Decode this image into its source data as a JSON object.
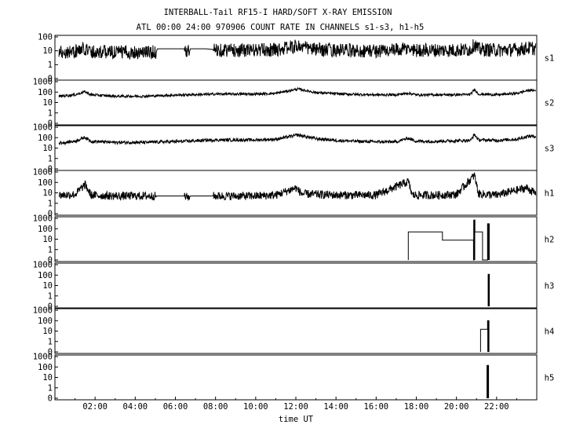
{
  "chart_data": {
    "type": "line",
    "title": "INTERBALL-Tail RF15-I HARD/SOFT X-RAY EMISSION",
    "subtitle": "ATL 00:00 24:00 970906  COUNT RATE IN CHANNELS s1-s3, h1-h5",
    "xlabel": "time UT",
    "x_unit": "hours UT",
    "xlim": [
      0,
      24
    ],
    "x_ticks": [
      {
        "value": 2,
        "label": "02:00"
      },
      {
        "value": 4,
        "label": "04:00"
      },
      {
        "value": 6,
        "label": "06:00"
      },
      {
        "value": 8,
        "label": "08:00"
      },
      {
        "value": 10,
        "label": "10:00"
      },
      {
        "value": 12,
        "label": "12:00"
      },
      {
        "value": 14,
        "label": "14:00"
      },
      {
        "value": 16,
        "label": "16:00"
      },
      {
        "value": 18,
        "label": "18:00"
      },
      {
        "value": 20,
        "label": "20:00"
      },
      {
        "value": 22,
        "label": "22:00"
      }
    ],
    "y_scale": "log",
    "grid": false,
    "panels": [
      {
        "name": "s1",
        "ylim": [
          0,
          100
        ],
        "y_ticks": [
          {
            "value": 100,
            "label": "100"
          },
          {
            "value": 10,
            "label": "10"
          },
          {
            "value": 1,
            "label": "1"
          },
          {
            "value": 0,
            "label": "0"
          }
        ],
        "noise": 0.5,
        "points": [
          [
            0.2,
            8
          ],
          [
            1.0,
            9
          ],
          [
            1.5,
            15
          ],
          [
            1.8,
            9
          ],
          [
            3.0,
            8
          ],
          [
            4.5,
            8
          ],
          [
            5.05,
            8
          ],
          [
            5.1,
            14
          ],
          [
            5.8,
            14
          ],
          [
            6.45,
            14
          ],
          [
            6.5,
            9
          ],
          [
            6.7,
            9
          ],
          [
            6.75,
            14
          ],
          [
            7.5,
            14
          ],
          [
            8.0,
            12
          ],
          [
            9.0,
            11
          ],
          [
            10.0,
            11
          ],
          [
            11.0,
            12
          ],
          [
            12.1,
            22
          ],
          [
            13.0,
            12
          ],
          [
            14.0,
            11
          ],
          [
            15.0,
            10
          ],
          [
            16.0,
            10
          ],
          [
            17.0,
            11
          ],
          [
            17.6,
            14
          ],
          [
            18.0,
            11
          ],
          [
            19.0,
            11
          ],
          [
            20.0,
            11
          ],
          [
            20.7,
            12
          ],
          [
            20.9,
            30
          ],
          [
            21.1,
            13
          ],
          [
            22.0,
            11
          ],
          [
            23.0,
            12
          ],
          [
            23.6,
            16
          ],
          [
            23.95,
            14
          ]
        ],
        "gaps": [
          [
            5.05,
            6.45
          ],
          [
            6.7,
            7.9
          ]
        ]
      },
      {
        "name": "s2",
        "ylim": [
          0,
          1000
        ],
        "y_ticks": [
          {
            "value": 1000,
            "label": "1000"
          },
          {
            "value": 100,
            "label": "100"
          },
          {
            "value": 10,
            "label": "10"
          },
          {
            "value": 1,
            "label": "1"
          },
          {
            "value": 0,
            "label": "0"
          }
        ],
        "noise": 0.12,
        "points": [
          [
            0.2,
            40
          ],
          [
            1.0,
            55
          ],
          [
            1.5,
            110
          ],
          [
            1.8,
            55
          ],
          [
            3.0,
            40
          ],
          [
            4.5,
            40
          ],
          [
            5.1,
            45
          ],
          [
            6.5,
            55
          ],
          [
            7.5,
            60
          ],
          [
            8.0,
            65
          ],
          [
            10.0,
            65
          ],
          [
            11.0,
            75
          ],
          [
            12.1,
            200
          ],
          [
            13.0,
            90
          ],
          [
            14.0,
            70
          ],
          [
            15.0,
            60
          ],
          [
            16.0,
            55
          ],
          [
            17.0,
            55
          ],
          [
            17.6,
            80
          ],
          [
            18.0,
            55
          ],
          [
            19.0,
            55
          ],
          [
            20.0,
            55
          ],
          [
            20.7,
            60
          ],
          [
            20.9,
            180
          ],
          [
            21.1,
            65
          ],
          [
            22.0,
            55
          ],
          [
            23.0,
            75
          ],
          [
            23.6,
            150
          ],
          [
            23.95,
            140
          ]
        ],
        "gaps": []
      },
      {
        "name": "s3",
        "ylim": [
          0,
          1000
        ],
        "y_ticks": [
          {
            "value": 1000,
            "label": "1000"
          },
          {
            "value": 100,
            "label": "100"
          },
          {
            "value": 10,
            "label": "10"
          },
          {
            "value": 1,
            "label": "1"
          },
          {
            "value": 0,
            "label": "0"
          }
        ],
        "noise": 0.15,
        "points": [
          [
            0.2,
            30
          ],
          [
            1.0,
            45
          ],
          [
            1.5,
            110
          ],
          [
            1.8,
            45
          ],
          [
            3.0,
            35
          ],
          [
            4.5,
            35
          ],
          [
            5.1,
            38
          ],
          [
            6.5,
            45
          ],
          [
            7.5,
            55
          ],
          [
            8.0,
            60
          ],
          [
            10.0,
            60
          ],
          [
            11.0,
            70
          ],
          [
            12.1,
            180
          ],
          [
            13.0,
            80
          ],
          [
            14.0,
            55
          ],
          [
            15.0,
            45
          ],
          [
            16.0,
            40
          ],
          [
            17.0,
            40
          ],
          [
            17.6,
            90
          ],
          [
            18.0,
            45
          ],
          [
            19.0,
            45
          ],
          [
            20.0,
            50
          ],
          [
            20.7,
            55
          ],
          [
            20.9,
            200
          ],
          [
            21.1,
            60
          ],
          [
            22.0,
            55
          ],
          [
            23.0,
            70
          ],
          [
            23.6,
            140
          ],
          [
            23.95,
            130
          ]
        ],
        "gaps": []
      },
      {
        "name": "h1",
        "ylim": [
          0,
          1000
        ],
        "y_ticks": [
          {
            "value": 1000,
            "label": "1000"
          },
          {
            "value": 100,
            "label": "100"
          },
          {
            "value": 10,
            "label": "10"
          },
          {
            "value": 1,
            "label": "1"
          },
          {
            "value": 0,
            "label": "0"
          }
        ],
        "noise": 0.4,
        "points": [
          [
            0.2,
            6
          ],
          [
            1.0,
            7
          ],
          [
            1.5,
            60
          ],
          [
            1.8,
            6
          ],
          [
            3.0,
            5
          ],
          [
            4.5,
            5
          ],
          [
            5.05,
            5
          ],
          [
            5.1,
            5
          ],
          [
            6.45,
            5
          ],
          [
            6.5,
            4
          ],
          [
            6.7,
            4
          ],
          [
            6.75,
            5
          ],
          [
            7.9,
            5
          ],
          [
            8.0,
            5
          ],
          [
            10.0,
            5
          ],
          [
            11.0,
            6
          ],
          [
            12.0,
            30
          ],
          [
            12.3,
            8
          ],
          [
            14.0,
            6
          ],
          [
            16.0,
            6
          ],
          [
            17.6,
            120
          ],
          [
            17.8,
            6
          ],
          [
            19.0,
            6
          ],
          [
            20.0,
            7
          ],
          [
            20.9,
            500
          ],
          [
            21.1,
            8
          ],
          [
            22.0,
            6
          ],
          [
            23.5,
            30
          ],
          [
            23.95,
            8
          ]
        ],
        "gaps": [
          [
            5.05,
            6.45
          ],
          [
            6.7,
            7.9
          ]
        ]
      },
      {
        "name": "h2",
        "ylim": [
          0,
          1000
        ],
        "y_ticks": [
          {
            "value": 1000,
            "label": "1000"
          },
          {
            "value": 100,
            "label": "100"
          },
          {
            "value": 10,
            "label": "10"
          },
          {
            "value": 1,
            "label": "1"
          },
          {
            "value": 0,
            "label": "0"
          }
        ],
        "points": [
          [
            17.6,
            0
          ],
          [
            17.6,
            50
          ],
          [
            19.3,
            50
          ],
          [
            19.3,
            8
          ],
          [
            20.85,
            8
          ],
          [
            20.85,
            0
          ],
          [
            20.87,
            0
          ],
          [
            20.87,
            700
          ],
          [
            20.92,
            700
          ],
          [
            20.92,
            50
          ],
          [
            21.3,
            50
          ],
          [
            21.3,
            0
          ],
          [
            21.55,
            0
          ],
          [
            21.55,
            300
          ],
          [
            21.63,
            300
          ],
          [
            21.63,
            0
          ]
        ],
        "bold_spans": [
          [
            20.84,
            20.93
          ],
          [
            21.55,
            21.65
          ]
        ]
      },
      {
        "name": "h3",
        "ylim": [
          0,
          1000
        ],
        "y_ticks": [
          {
            "value": 1000,
            "label": "1000"
          },
          {
            "value": 100,
            "label": "100"
          },
          {
            "value": 10,
            "label": "10"
          },
          {
            "value": 1,
            "label": "1"
          },
          {
            "value": 0,
            "label": "0"
          }
        ],
        "points": [
          [
            21.58,
            0
          ],
          [
            21.58,
            120
          ],
          [
            21.64,
            120
          ],
          [
            21.64,
            0
          ]
        ],
        "bold_spans": [
          [
            21.57,
            21.65
          ]
        ]
      },
      {
        "name": "h4",
        "ylim": [
          0,
          1000
        ],
        "y_ticks": [
          {
            "value": 1000,
            "label": "1000"
          },
          {
            "value": 100,
            "label": "100"
          },
          {
            "value": 10,
            "label": "10"
          },
          {
            "value": 1,
            "label": "1"
          },
          {
            "value": 0,
            "label": "0"
          }
        ],
        "points": [
          [
            21.2,
            0
          ],
          [
            21.2,
            15
          ],
          [
            21.55,
            15
          ],
          [
            21.55,
            100
          ],
          [
            21.62,
            100
          ],
          [
            21.62,
            0
          ]
        ],
        "bold_spans": [
          [
            21.54,
            21.63
          ]
        ]
      },
      {
        "name": "h5",
        "ylim": [
          0,
          1000
        ],
        "y_ticks": [
          {
            "value": 1000,
            "label": "1000"
          },
          {
            "value": 100,
            "label": "100"
          },
          {
            "value": 10,
            "label": "10"
          },
          {
            "value": 1,
            "label": "1"
          },
          {
            "value": 0,
            "label": "0"
          }
        ],
        "points": [
          [
            21.52,
            0
          ],
          [
            21.52,
            140
          ],
          [
            21.6,
            140
          ],
          [
            21.6,
            0
          ]
        ],
        "bold_spans": [
          [
            21.52,
            21.6
          ]
        ]
      }
    ]
  }
}
